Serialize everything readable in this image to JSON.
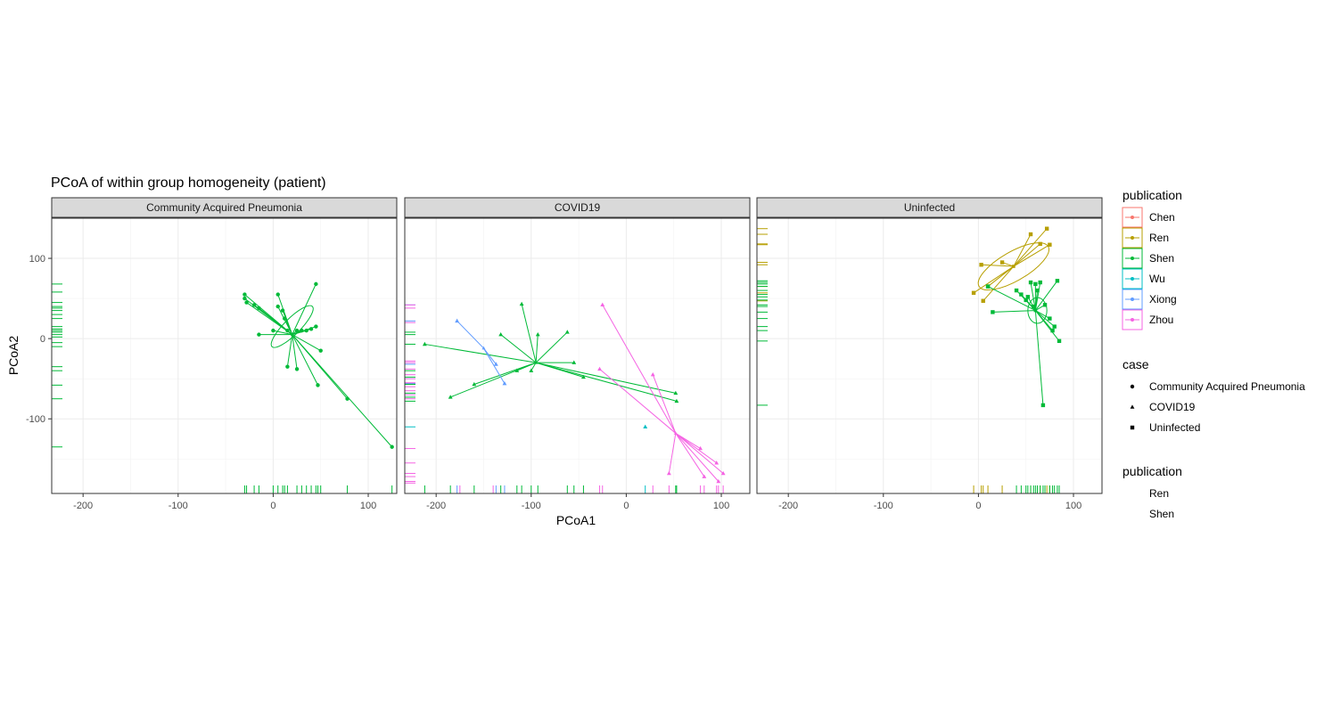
{
  "chart_data": {
    "type": "scatter",
    "title": "PCoA of within group homogeneity (patient)",
    "xlabel": "PCoA1",
    "ylabel": "PCoA2",
    "xlim": [
      -233,
      130
    ],
    "ylim": [
      -193,
      150
    ],
    "xticks": [
      -200,
      -100,
      0,
      100
    ],
    "yticks": [
      -100,
      0,
      100
    ],
    "xtick_labels": [
      "-200",
      "-100",
      "0",
      "100"
    ],
    "ytick_labels": [
      "-100",
      "0",
      "100"
    ],
    "grid": true,
    "colors": {
      "Chen": "#F8766D",
      "Ren": "#B79F00",
      "Shen": "#00BA38",
      "Wu": "#00BFC4",
      "Xiong": "#619CFF",
      "Zhou": "#F564E3"
    },
    "legends": [
      {
        "title": "publication",
        "kind": "color",
        "items": [
          "Chen",
          "Ren",
          "Shen",
          "Wu",
          "Xiong",
          "Zhou"
        ]
      },
      {
        "title": "case",
        "kind": "shape",
        "items": [
          {
            "label": "Community Acquired Pneumonia",
            "shape": "circle"
          },
          {
            "label": "COVID19",
            "shape": "triangle"
          },
          {
            "label": "Uninfected",
            "shape": "square"
          }
        ]
      },
      {
        "title": "publication",
        "kind": "blank",
        "items": [
          "Ren",
          "Shen"
        ]
      }
    ],
    "panels": [
      {
        "label": "Community Acquired Pneumonia",
        "shape": "circle",
        "groups": [
          {
            "publication": "Shen",
            "centroid": [
              20,
              5
            ],
            "ellipse": {
              "cx": 20,
              "cy": 15,
              "rx": 30,
              "ry": 10,
              "angle": -45
            },
            "points": [
              [
                -30,
                55
              ],
              [
                -30,
                50
              ],
              [
                -28,
                45
              ],
              [
                -20,
                42
              ],
              [
                -15,
                38
              ],
              [
                5,
                55
              ],
              [
                5,
                40
              ],
              [
                10,
                35
              ],
              [
                12,
                25
              ],
              [
                15,
                10
              ],
              [
                0,
                10
              ],
              [
                -15,
                5
              ],
              [
                25,
                10
              ],
              [
                30,
                10
              ],
              [
                35,
                10
              ],
              [
                40,
                12
              ],
              [
                45,
                15
              ],
              [
                45,
                68
              ],
              [
                15,
                -35
              ],
              [
                25,
                -38
              ],
              [
                50,
                -15
              ],
              [
                47,
                -58
              ],
              [
                78,
                -75
              ],
              [
                125,
                -135
              ]
            ]
          }
        ]
      },
      {
        "label": "COVID19",
        "shape": "triangle",
        "groups": [
          {
            "publication": "Shen",
            "centroid": [
              -95,
              -30
            ],
            "points": [
              [
                -212,
                -7
              ],
              [
                -110,
                43
              ],
              [
                -93,
                5
              ],
              [
                -62,
                8
              ],
              [
                -132,
                5
              ],
              [
                -185,
                -73
              ],
              [
                -160,
                -57
              ],
              [
                -115,
                -40
              ],
              [
                -100,
                -40
              ],
              [
                -55,
                -30
              ],
              [
                -45,
                -48
              ],
              [
                52,
                -68
              ],
              [
                53,
                -78
              ]
            ]
          },
          {
            "publication": "Zhou",
            "centroid": [
              52,
              -118
            ],
            "points": [
              [
                -25,
                42
              ],
              [
                -28,
                -38
              ],
              [
                28,
                -45
              ],
              [
                78,
                -137
              ],
              [
                82,
                -172
              ],
              [
                95,
                -155
              ],
              [
                102,
                -168
              ],
              [
                97,
                -178
              ],
              [
                45,
                -168
              ]
            ]
          },
          {
            "publication": "Xiong",
            "centroid": [
              -150,
              -12
            ],
            "points": [
              [
                -178,
                22
              ],
              [
                -128,
                -56
              ],
              [
                -137,
                -32
              ]
            ]
          },
          {
            "publication": "Wu",
            "centroid": [
              20,
              -110
            ],
            "points": [
              [
                20,
                -110
              ]
            ]
          }
        ]
      },
      {
        "label": "Uninfected",
        "shape": "square",
        "groups": [
          {
            "publication": "Ren",
            "centroid": [
              37,
              90
            ],
            "ellipse": {
              "cx": 37,
              "cy": 90,
              "rx": 42,
              "ry": 18,
              "angle": -30
            },
            "points": [
              [
                -5,
                57
              ],
              [
                3,
                92
              ],
              [
                5,
                47
              ],
              [
                10,
                65
              ],
              [
                25,
                95
              ],
              [
                55,
                130
              ],
              [
                65,
                118
              ],
              [
                72,
                137
              ],
              [
                75,
                117
              ]
            ]
          },
          {
            "publication": "Shen",
            "centroid": [
              60,
              35
            ],
            "ellipse": {
              "cx": 62,
              "cy": 35,
              "rx": 10,
              "ry": 16,
              "angle": 0
            },
            "points": [
              [
                10,
                65
              ],
              [
                15,
                33
              ],
              [
                40,
                60
              ],
              [
                45,
                55
              ],
              [
                50,
                48
              ],
              [
                52,
                52
              ],
              [
                55,
                70
              ],
              [
                60,
                68
              ],
              [
                65,
                70
              ],
              [
                62,
                60
              ],
              [
                70,
                42
              ],
              [
                75,
                25
              ],
              [
                80,
                15
              ],
              [
                78,
                10
              ],
              [
                83,
                72
              ],
              [
                85,
                -3
              ],
              [
                68,
                -83
              ],
              [
                58,
                40
              ]
            ]
          }
        ]
      }
    ],
    "y_rugs": {
      "Community Acquired Pneumonia": {
        "Shen": [
          68,
          58,
          45,
          40,
          38,
          35,
          30,
          25,
          15,
          12,
          10,
          8,
          5,
          2,
          -5,
          -10,
          -35,
          -40,
          -58,
          -75,
          -135
        ]
      },
      "COVID19": {
        "Xiong": [
          42,
          22,
          -32,
          -56
        ],
        "Zhou": [
          42,
          38,
          20,
          -28,
          -30,
          -38,
          -45,
          -50,
          -55,
          -60,
          -65,
          -70,
          -75,
          -137,
          -155,
          -168,
          -172,
          -178,
          -180
        ],
        "Shen": [
          8,
          5,
          -7,
          -40,
          -48,
          -57,
          -68,
          -73,
          -78
        ],
        "Wu": [
          -110
        ]
      },
      "Uninfected": {
        "Ren": [
          137,
          130,
          118,
          117,
          95,
          92,
          65,
          57,
          47
        ],
        "Shen": [
          72,
          70,
          68,
          65,
          60,
          55,
          52,
          48,
          42,
          40,
          33,
          25,
          15,
          10,
          -3,
          -83
        ]
      }
    },
    "x_rugs": {
      "Community Acquired Pneumonia": {
        "Shen": [
          -30,
          -28,
          -20,
          -15,
          0,
          5,
          10,
          12,
          15,
          25,
          30,
          35,
          40,
          45,
          47,
          50,
          78,
          125
        ]
      },
      "COVID19": {
        "Xiong": [
          -178,
          -137,
          -128
        ],
        "Zhou": [
          -175,
          -140,
          -28,
          -25,
          28,
          45,
          78,
          82,
          95,
          97,
          102
        ],
        "Shen": [
          -212,
          -185,
          -160,
          -132,
          -115,
          -110,
          -100,
          -93,
          -62,
          -55,
          -45,
          52,
          53
        ],
        "Wu": [
          20
        ]
      },
      "Uninfected": {
        "Ren": [
          -5,
          3,
          5,
          10,
          25,
          55,
          65,
          72,
          75
        ],
        "Shen": [
          40,
          45,
          50,
          52,
          55,
          58,
          60,
          62,
          65,
          68,
          70,
          75,
          78,
          80,
          83,
          85
        ]
      }
    }
  }
}
